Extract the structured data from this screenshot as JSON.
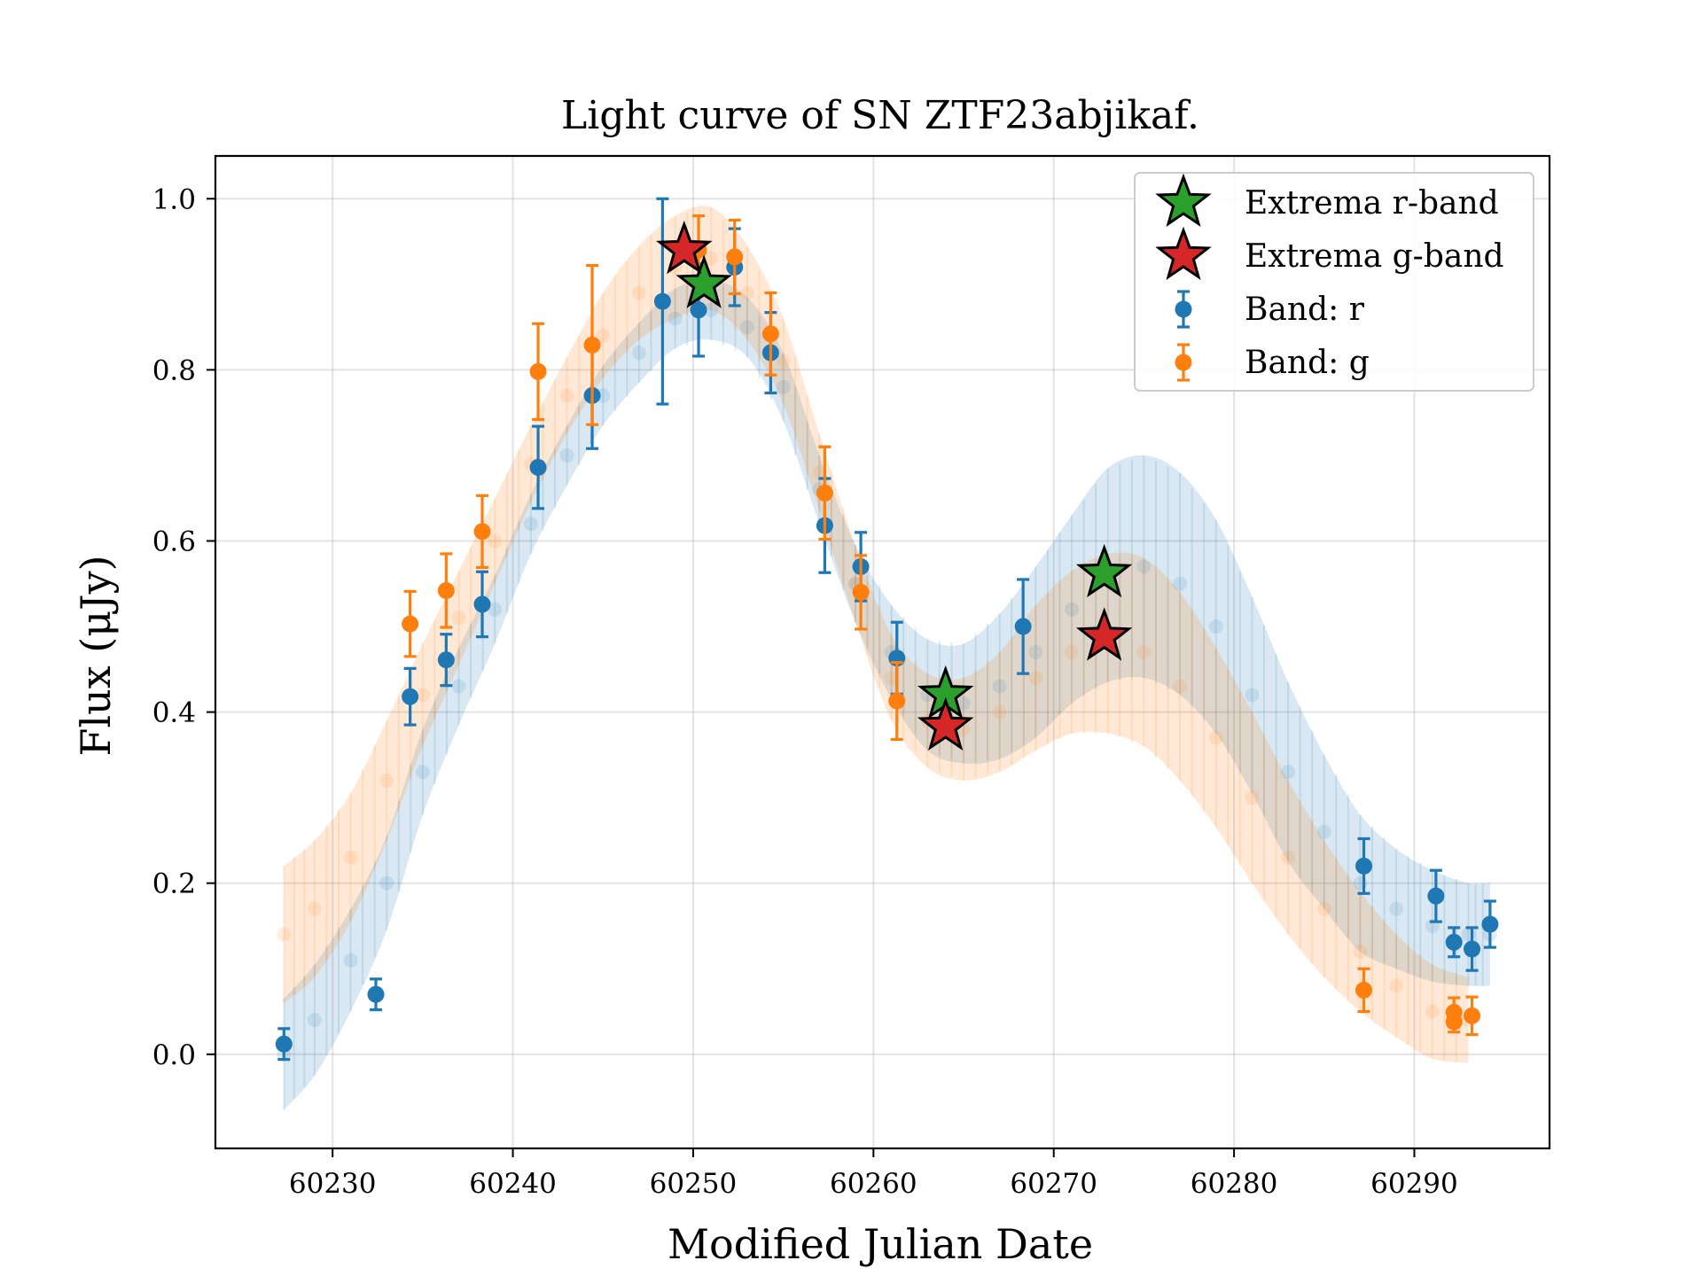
{
  "chart_data": {
    "type": "scatter",
    "title": "Light curve of SN ZTF23abjikaf.",
    "xlabel": "Modified Julian Date",
    "ylabel": "Flux (μJy)",
    "xlim": [
      60223.5,
      60297.5
    ],
    "ylim": [
      -0.11,
      1.05
    ],
    "xticks": [
      60230,
      60240,
      60250,
      60260,
      60270,
      60280,
      60290
    ],
    "yticks": [
      0.0,
      0.2,
      0.4,
      0.6,
      0.8,
      1.0
    ],
    "xtick_labels": [
      "60230",
      "60240",
      "60250",
      "60260",
      "60270",
      "60280",
      "60290"
    ],
    "ytick_labels": [
      "0.0",
      "0.2",
      "0.4",
      "0.6",
      "0.8",
      "1.0"
    ],
    "grid": true,
    "legend_position": "top-right",
    "series": [
      {
        "name": "Band: r",
        "color": "#1f77b4",
        "kind": "observed",
        "points": [
          {
            "x": 60227.3,
            "y": 0.012,
            "err": 0.018
          },
          {
            "x": 60232.4,
            "y": 0.07,
            "err": 0.018
          },
          {
            "x": 60234.3,
            "y": 0.418,
            "err": 0.033
          },
          {
            "x": 60236.3,
            "y": 0.461,
            "err": 0.03
          },
          {
            "x": 60238.3,
            "y": 0.526,
            "err": 0.038
          },
          {
            "x": 60241.4,
            "y": 0.686,
            "err": 0.048
          },
          {
            "x": 60244.4,
            "y": 0.77,
            "err": 0.062
          },
          {
            "x": 60248.3,
            "y": 0.88,
            "err": 0.12
          },
          {
            "x": 60250.3,
            "y": 0.87,
            "err": 0.054
          },
          {
            "x": 60252.3,
            "y": 0.92,
            "err": 0.045
          },
          {
            "x": 60254.3,
            "y": 0.82,
            "err": 0.047
          },
          {
            "x": 60257.3,
            "y": 0.618,
            "err": 0.055
          },
          {
            "x": 60259.3,
            "y": 0.57,
            "err": 0.04
          },
          {
            "x": 60261.3,
            "y": 0.463,
            "err": 0.042
          },
          {
            "x": 60268.3,
            "y": 0.5,
            "err": 0.055
          },
          {
            "x": 60287.2,
            "y": 0.22,
            "err": 0.032
          },
          {
            "x": 60291.2,
            "y": 0.185,
            "err": 0.03
          },
          {
            "x": 60292.2,
            "y": 0.131,
            "err": 0.017
          },
          {
            "x": 60293.2,
            "y": 0.123,
            "err": 0.025
          },
          {
            "x": 60294.2,
            "y": 0.152,
            "err": 0.027
          }
        ]
      },
      {
        "name": "Band: g",
        "color": "#ff7f0e",
        "kind": "observed",
        "points": [
          {
            "x": 60234.3,
            "y": 0.503,
            "err": 0.038
          },
          {
            "x": 60236.3,
            "y": 0.542,
            "err": 0.043
          },
          {
            "x": 60238.3,
            "y": 0.611,
            "err": 0.042
          },
          {
            "x": 60241.4,
            "y": 0.798,
            "err": 0.056
          },
          {
            "x": 60244.4,
            "y": 0.829,
            "err": 0.093
          },
          {
            "x": 60250.3,
            "y": 0.94,
            "err": 0.04
          },
          {
            "x": 60252.3,
            "y": 0.932,
            "err": 0.043
          },
          {
            "x": 60254.3,
            "y": 0.842,
            "err": 0.048
          },
          {
            "x": 60257.3,
            "y": 0.656,
            "err": 0.054
          },
          {
            "x": 60259.3,
            "y": 0.54,
            "err": 0.043
          },
          {
            "x": 60261.3,
            "y": 0.413,
            "err": 0.045
          },
          {
            "x": 60287.2,
            "y": 0.075,
            "err": 0.025
          },
          {
            "x": 60292.2,
            "y": 0.038,
            "err": 0.012
          },
          {
            "x": 60292.2,
            "y": 0.049,
            "err": 0.017
          },
          {
            "x": 60293.2,
            "y": 0.045,
            "err": 0.022
          }
        ]
      },
      {
        "name": "r-band model",
        "color": "#1f77b4",
        "kind": "model",
        "x": [
          60227.3,
          60229,
          60231,
          60233,
          60235,
          60237,
          60239,
          60241,
          60243,
          60245,
          60247,
          60249,
          60251,
          60253,
          60255,
          60257,
          60259,
          60261,
          60263,
          60265,
          60267,
          60269,
          60271,
          60273,
          60275,
          60277,
          60279,
          60281,
          60283,
          60285,
          60287,
          60289,
          60291,
          60293,
          60294.2
        ],
        "mean": [
          0.0,
          0.04,
          0.11,
          0.2,
          0.33,
          0.43,
          0.52,
          0.62,
          0.7,
          0.77,
          0.82,
          0.86,
          0.87,
          0.85,
          0.78,
          0.66,
          0.55,
          0.47,
          0.42,
          0.41,
          0.43,
          0.47,
          0.52,
          0.56,
          0.57,
          0.55,
          0.5,
          0.42,
          0.33,
          0.26,
          0.2,
          0.17,
          0.15,
          0.14,
          0.14
        ],
        "half_width": [
          0.065,
          0.065,
          0.06,
          0.055,
          0.05,
          0.045,
          0.04,
          0.035,
          0.035,
          0.035,
          0.035,
          0.035,
          0.035,
          0.035,
          0.04,
          0.04,
          0.045,
          0.055,
          0.065,
          0.07,
          0.085,
          0.1,
          0.11,
          0.125,
          0.13,
          0.13,
          0.125,
          0.115,
          0.105,
          0.09,
          0.08,
          0.07,
          0.065,
          0.06,
          0.06
        ]
      },
      {
        "name": "g-band model",
        "color": "#ff7f0e",
        "kind": "model",
        "x": [
          60227.3,
          60229,
          60231,
          60233,
          60235,
          60237,
          60239,
          60241,
          60243,
          60245,
          60247,
          60249,
          60251,
          60253,
          60255,
          60257,
          60259,
          60261,
          60263,
          60265,
          60267,
          60269,
          60271,
          60273,
          60275,
          60277,
          60279,
          60281,
          60283,
          60285,
          60287,
          60289,
          60291,
          60293
        ],
        "mean": [
          0.14,
          0.17,
          0.23,
          0.32,
          0.42,
          0.51,
          0.6,
          0.69,
          0.77,
          0.84,
          0.89,
          0.92,
          0.93,
          0.89,
          0.81,
          0.68,
          0.55,
          0.44,
          0.39,
          0.38,
          0.4,
          0.44,
          0.47,
          0.48,
          0.47,
          0.43,
          0.37,
          0.3,
          0.23,
          0.17,
          0.12,
          0.08,
          0.05,
          0.04
        ],
        "half_width": [
          0.08,
          0.08,
          0.075,
          0.07,
          0.06,
          0.055,
          0.05,
          0.045,
          0.045,
          0.05,
          0.055,
          0.06,
          0.06,
          0.055,
          0.05,
          0.045,
          0.045,
          0.05,
          0.055,
          0.06,
          0.07,
          0.085,
          0.095,
          0.105,
          0.11,
          0.11,
          0.105,
          0.1,
          0.09,
          0.08,
          0.07,
          0.06,
          0.055,
          0.05
        ]
      },
      {
        "name": "Extrema r-band",
        "color": "#2ca02c",
        "kind": "extrema",
        "points": [
          {
            "x": 60250.6,
            "y": 0.9
          },
          {
            "x": 60264.0,
            "y": 0.42
          },
          {
            "x": 60272.8,
            "y": 0.562
          }
        ]
      },
      {
        "name": "Extrema g-band",
        "color": "#d62728",
        "kind": "extrema",
        "points": [
          {
            "x": 60249.5,
            "y": 0.94
          },
          {
            "x": 60264.0,
            "y": 0.383
          },
          {
            "x": 60272.8,
            "y": 0.488
          }
        ]
      }
    ],
    "legend": [
      "Extrema r-band",
      "Extrema g-band",
      "Band: r",
      "Band: g"
    ]
  }
}
